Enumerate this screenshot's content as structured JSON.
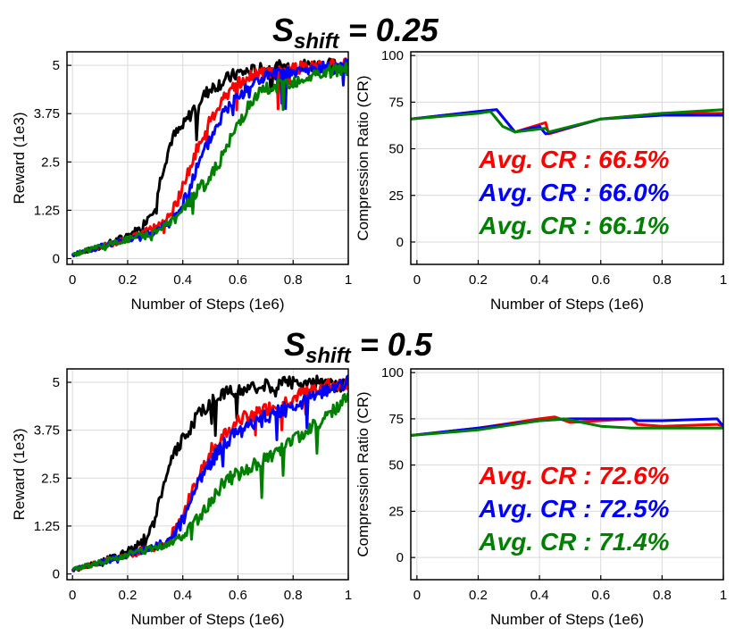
{
  "sections": [
    {
      "title_main": "S",
      "title_sub": "shift",
      "title_rest": " = 0.25"
    },
    {
      "title_main": "S",
      "title_sub": "shift",
      "title_rest": " = 0.5"
    }
  ],
  "colors": {
    "red": "#ff0000",
    "blue": "#0000ff",
    "green": "#008000",
    "black": "#000000"
  },
  "chart_data": [
    {
      "type": "line",
      "panel": "top-left",
      "xlabel": "Number of Steps (1e6)",
      "ylabel": "Reward (1e3)",
      "xlim": [
        -0.02,
        1.0
      ],
      "ylim": [
        -0.15,
        5.35
      ],
      "xticks": [
        0,
        0.2,
        0.4,
        0.6,
        0.8,
        1
      ],
      "xticklabels": [
        "0",
        "0.2",
        "0.4",
        "0.6",
        "0.8",
        "1"
      ],
      "yticks": [
        0,
        1.25,
        2.5,
        3.75,
        5
      ],
      "yticklabels": [
        "0",
        "1.25",
        "2.5",
        "3.75",
        "5"
      ],
      "grid": true,
      "series": [
        {
          "color": "black",
          "x": [
            0,
            0.1,
            0.2,
            0.25,
            0.3,
            0.33,
            0.36,
            0.4,
            0.45,
            0.5,
            0.55,
            0.6,
            0.7,
            0.8,
            0.9,
            1.0
          ],
          "y": [
            0.1,
            0.3,
            0.6,
            0.8,
            1.4,
            2.4,
            3.1,
            3.4,
            4.0,
            4.4,
            4.6,
            4.8,
            4.9,
            5.0,
            5.0,
            5.0
          ],
          "noise": 0.18
        },
        {
          "color": "red",
          "x": [
            0,
            0.1,
            0.2,
            0.3,
            0.35,
            0.4,
            0.45,
            0.5,
            0.55,
            0.6,
            0.65,
            0.7,
            0.8,
            0.9,
            1.0
          ],
          "y": [
            0.1,
            0.3,
            0.5,
            0.8,
            1.1,
            1.8,
            2.8,
            3.6,
            4.2,
            4.5,
            4.7,
            4.8,
            4.9,
            5.0,
            5.0
          ],
          "noise": 0.18
        },
        {
          "color": "blue",
          "x": [
            0,
            0.1,
            0.2,
            0.3,
            0.35,
            0.4,
            0.45,
            0.5,
            0.55,
            0.6,
            0.65,
            0.7,
            0.8,
            0.9,
            1.0
          ],
          "y": [
            0.1,
            0.3,
            0.5,
            0.7,
            0.9,
            1.4,
            2.3,
            3.1,
            3.8,
            4.2,
            4.5,
            4.7,
            4.8,
            4.9,
            5.0
          ],
          "noise": 0.18
        },
        {
          "color": "green",
          "x": [
            0,
            0.1,
            0.2,
            0.3,
            0.35,
            0.4,
            0.45,
            0.5,
            0.55,
            0.6,
            0.65,
            0.7,
            0.8,
            0.9,
            1.0
          ],
          "y": [
            0.1,
            0.3,
            0.5,
            0.7,
            0.9,
            1.2,
            1.7,
            2.1,
            2.7,
            3.5,
            4.1,
            4.4,
            4.6,
            4.8,
            4.9
          ],
          "noise": 0.18
        }
      ]
    },
    {
      "type": "line",
      "panel": "top-right",
      "xlabel": "Number of Steps (1e6)",
      "ylabel": "Compression Ratio (CR)",
      "xlim": [
        -0.02,
        1.0
      ],
      "ylim": [
        -12,
        102
      ],
      "xticks": [
        0,
        0.2,
        0.4,
        0.6,
        0.8,
        1
      ],
      "xticklabels": [
        "0",
        "0.2",
        "0.4",
        "0.6",
        "0.8",
        "1"
      ],
      "yticks": [
        0,
        25,
        50,
        75,
        100
      ],
      "yticklabels": [
        "0",
        "25",
        "50",
        "75",
        "100"
      ],
      "grid": true,
      "annotations": [
        {
          "text": "Avg. CR : 66.5%",
          "color": "red"
        },
        {
          "text": "Avg. CR : 66.0%",
          "color": "blue"
        },
        {
          "text": "Avg. CR : 66.1%",
          "color": "green"
        }
      ],
      "series": [
        {
          "color": "red",
          "x": [
            -0.02,
            0.2,
            0.26,
            0.3,
            0.32,
            0.42,
            0.43,
            0.6,
            0.8,
            1.0
          ],
          "y": [
            66,
            70,
            71,
            63,
            59,
            64,
            58,
            66,
            69,
            69
          ]
        },
        {
          "color": "blue",
          "x": [
            -0.02,
            0.2,
            0.26,
            0.3,
            0.32,
            0.4,
            0.42,
            0.6,
            0.8,
            1.0
          ],
          "y": [
            66,
            70,
            71,
            63,
            59,
            62,
            58,
            66,
            68,
            68
          ]
        },
        {
          "color": "green",
          "x": [
            -0.02,
            0.2,
            0.24,
            0.28,
            0.32,
            0.42,
            0.43,
            0.6,
            0.8,
            1.0
          ],
          "y": [
            66,
            69,
            70,
            62,
            59,
            61,
            59,
            66,
            69,
            71
          ]
        }
      ]
    },
    {
      "type": "line",
      "panel": "bottom-left",
      "xlabel": "Number of Steps (1e6)",
      "ylabel": "Reward (1e3)",
      "xlim": [
        -0.02,
        1.0
      ],
      "ylim": [
        -0.15,
        5.35
      ],
      "xticks": [
        0,
        0.2,
        0.4,
        0.6,
        0.8,
        1
      ],
      "xticklabels": [
        "0",
        "0.2",
        "0.4",
        "0.6",
        "0.8",
        "1"
      ],
      "yticks": [
        0,
        1.25,
        2.5,
        3.75,
        5
      ],
      "yticklabels": [
        "0",
        "1.25",
        "2.5",
        "3.75",
        "5"
      ],
      "grid": true,
      "series": [
        {
          "color": "black",
          "x": [
            0,
            0.1,
            0.2,
            0.25,
            0.3,
            0.33,
            0.36,
            0.4,
            0.45,
            0.5,
            0.55,
            0.6,
            0.7,
            0.8,
            0.9,
            1.0
          ],
          "y": [
            0.1,
            0.3,
            0.6,
            0.8,
            1.4,
            2.4,
            3.0,
            3.5,
            4.1,
            4.5,
            4.7,
            4.8,
            4.9,
            5.0,
            5.0,
            5.0
          ],
          "noise": 0.18
        },
        {
          "color": "red",
          "x": [
            0,
            0.1,
            0.2,
            0.3,
            0.35,
            0.4,
            0.45,
            0.5,
            0.55,
            0.6,
            0.7,
            0.8,
            0.9,
            1.0
          ],
          "y": [
            0.1,
            0.3,
            0.5,
            0.7,
            0.9,
            1.5,
            2.4,
            3.2,
            3.6,
            4.0,
            4.3,
            4.6,
            4.9,
            5.0
          ],
          "noise": 0.18
        },
        {
          "color": "blue",
          "x": [
            0,
            0.1,
            0.2,
            0.3,
            0.35,
            0.4,
            0.45,
            0.5,
            0.55,
            0.6,
            0.7,
            0.8,
            0.9,
            1.0
          ],
          "y": [
            0.1,
            0.3,
            0.5,
            0.7,
            0.9,
            1.4,
            2.3,
            2.9,
            3.4,
            3.7,
            4.1,
            4.4,
            4.7,
            5.0
          ],
          "noise": 0.18
        },
        {
          "color": "green",
          "x": [
            0,
            0.1,
            0.2,
            0.3,
            0.35,
            0.4,
            0.45,
            0.5,
            0.55,
            0.6,
            0.7,
            0.8,
            0.9,
            1.0
          ],
          "y": [
            0.1,
            0.3,
            0.5,
            0.7,
            0.8,
            1.0,
            1.4,
            1.9,
            2.4,
            2.6,
            3.0,
            3.5,
            4.0,
            4.6
          ],
          "noise": 0.18
        }
      ]
    },
    {
      "type": "line",
      "panel": "bottom-right",
      "xlabel": "Number of Steps (1e6)",
      "ylabel": "Compression Ratio (CR)",
      "xlim": [
        -0.02,
        1.0
      ],
      "ylim": [
        -12,
        102
      ],
      "xticks": [
        0,
        0.2,
        0.4,
        0.6,
        0.8,
        1
      ],
      "xticklabels": [
        "0",
        "0.2",
        "0.4",
        "0.6",
        "0.8",
        "1"
      ],
      "yticks": [
        0,
        25,
        50,
        75,
        100
      ],
      "yticklabels": [
        "0",
        "25",
        "50",
        "75",
        "100"
      ],
      "grid": true,
      "annotations": [
        {
          "text": "Avg. CR : 72.6%",
          "color": "red"
        },
        {
          "text": "Avg. CR : 72.5%",
          "color": "blue"
        },
        {
          "text": "Avg. CR : 71.4%",
          "color": "green"
        }
      ],
      "series": [
        {
          "color": "red",
          "x": [
            -0.02,
            0.2,
            0.4,
            0.45,
            0.5,
            0.7,
            0.72,
            0.8,
            0.98,
            1.0
          ],
          "y": [
            66,
            70,
            75,
            76,
            73,
            75,
            72,
            71,
            72,
            71
          ]
        },
        {
          "color": "blue",
          "x": [
            -0.02,
            0.2,
            0.4,
            0.5,
            0.7,
            0.72,
            0.8,
            0.98,
            1.0
          ],
          "y": [
            66,
            70,
            74,
            75,
            75,
            74,
            74,
            75,
            71
          ]
        },
        {
          "color": "green",
          "x": [
            -0.02,
            0.2,
            0.4,
            0.48,
            0.6,
            0.7,
            0.8,
            1.0
          ],
          "y": [
            66,
            69,
            74,
            75,
            71,
            70,
            70,
            70
          ]
        }
      ]
    }
  ]
}
